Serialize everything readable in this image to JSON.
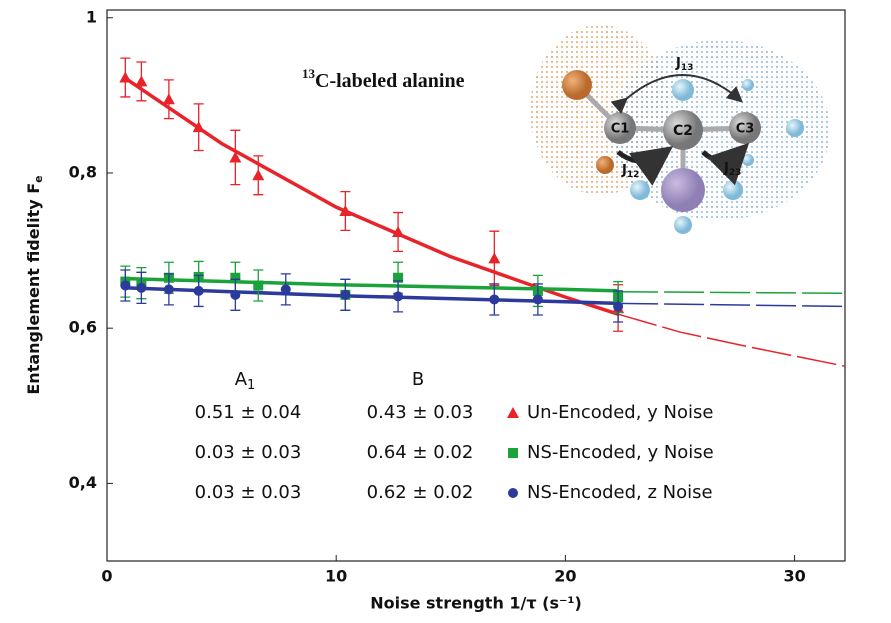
{
  "chart_data": {
    "type": "scatter",
    "xlabel": "Noise strength 1/τ  (s⁻¹)",
    "ylabel": "Entanglement fidelity F",
    "ylabel_sub": "e",
    "xlim": [
      0,
      32.2
    ],
    "ylim": [
      0.3,
      1.01
    ],
    "xticks": [
      0,
      10,
      20,
      30
    ],
    "yticks": [
      {
        "value": 0.4,
        "label": "0,4"
      },
      {
        "value": 0.6,
        "label": "0,6"
      },
      {
        "value": 0.8,
        "label": "0,8"
      },
      1
    ],
    "table_header": [
      {
        "text": "A",
        "sub": "1"
      },
      {
        "text": "B"
      }
    ],
    "series": [
      {
        "name": "Un-Encoded, y Noise",
        "color": "#e8232a",
        "marker": "triangle",
        "A1": "0.51 ± 0.04",
        "B": "0.43 ± 0.03",
        "x": [
          0.8,
          1.5,
          2.7,
          4.0,
          5.6,
          6.6,
          10.4,
          12.7,
          16.9,
          22.3
        ],
        "values": [
          0.923,
          0.918,
          0.895,
          0.859,
          0.82,
          0.797,
          0.751,
          0.724,
          0.69,
          0.626
        ],
        "errors": [
          0.025,
          0.025,
          0.025,
          0.03,
          0.035,
          0.025,
          0.025,
          0.025,
          0.035,
          0.03
        ],
        "fit_x": [
          0.8,
          5,
          10,
          15,
          20,
          22.3
        ],
        "fit": [
          0.922,
          0.838,
          0.756,
          0.692,
          0.64,
          0.618
        ],
        "extrap_x": [
          22.3,
          25,
          28,
          32.2
        ],
        "extrap": [
          0.618,
          0.595,
          0.576,
          0.551
        ]
      },
      {
        "name": "NS-Encoded, y Noise",
        "color": "#1aa33a",
        "marker": "square",
        "A1": "0.03 ± 0.03",
        "B": "0.64 ± 0.02",
        "x": [
          0.8,
          1.5,
          2.7,
          4.0,
          5.6,
          6.6,
          10.4,
          12.7,
          18.8,
          22.3
        ],
        "values": [
          0.66,
          0.658,
          0.665,
          0.666,
          0.665,
          0.655,
          0.643,
          0.665,
          0.648,
          0.64
        ],
        "errors": [
          0.02,
          0.02,
          0.02,
          0.02,
          0.02,
          0.02,
          0.02,
          0.02,
          0.02,
          0.02
        ],
        "fit_x": [
          0.8,
          10,
          20,
          22.3
        ],
        "fit": [
          0.664,
          0.656,
          0.65,
          0.648
        ],
        "extrap_x": [
          22.3,
          32.2
        ],
        "extrap": [
          0.647,
          0.645
        ]
      },
      {
        "name": "NS-Encoded, z Noise",
        "color": "#2c3a9c",
        "marker": "circle",
        "A1": "0.03 ± 0.03",
        "B": "0.62 ± 0.02",
        "x": [
          0.8,
          1.5,
          2.7,
          4.0,
          5.6,
          7.8,
          10.4,
          12.7,
          16.9,
          18.8,
          22.3
        ],
        "values": [
          0.655,
          0.652,
          0.65,
          0.648,
          0.643,
          0.65,
          0.643,
          0.641,
          0.637,
          0.637,
          0.628
        ],
        "errors": [
          0.02,
          0.02,
          0.02,
          0.02,
          0.02,
          0.02,
          0.02,
          0.02,
          0.02,
          0.02,
          0.02
        ],
        "fit_x": [
          0.8,
          10,
          20,
          22.3
        ],
        "fit": [
          0.652,
          0.642,
          0.634,
          0.632
        ],
        "extrap_x": [
          22.3,
          32.2
        ],
        "extrap": [
          0.632,
          0.628
        ]
      }
    ]
  },
  "inset": {
    "title_sup": "13",
    "title": "C-labeled alanine",
    "atoms": [
      "C1",
      "C2",
      "C3"
    ],
    "couplings": [
      {
        "text": "J",
        "sub": "13"
      },
      {
        "text": "J",
        "sub": "12"
      },
      {
        "text": "J",
        "sub": "23"
      }
    ]
  }
}
